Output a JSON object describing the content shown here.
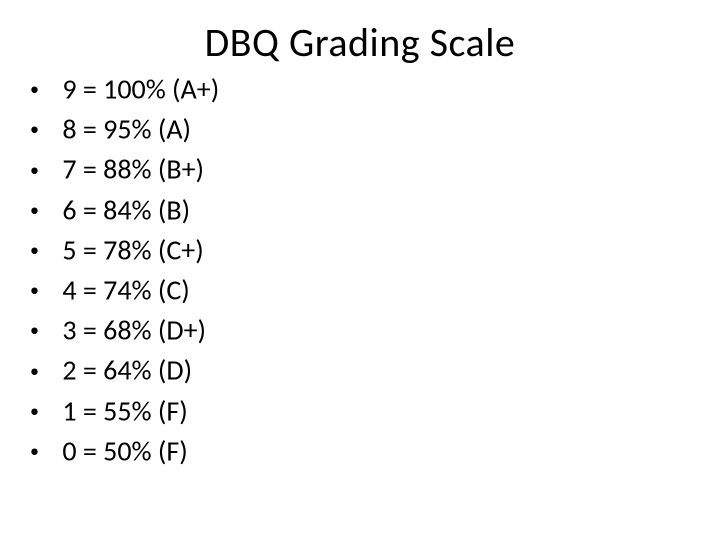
{
  "title": "DBQ Grading Scale",
  "title_fontsize": 40,
  "title_color": "#000000",
  "body_fontsize": 28,
  "body_color": "#000000",
  "background_color": "#ffffff",
  "bullet_glyph": "•",
  "items": [
    {
      "score": "9",
      "percent": "100%",
      "letter": "A+",
      "text": "9 = 100% (A+)"
    },
    {
      "score": "8",
      "percent": "95%",
      "letter": "A",
      "text": "8 = 95% (A)"
    },
    {
      "score": "7",
      "percent": "88%",
      "letter": "B+",
      "text": "7 = 88% (B+)"
    },
    {
      "score": "6",
      "percent": "84%",
      "letter": "B",
      "text": "6 = 84% (B)"
    },
    {
      "score": "5",
      "percent": "78%",
      "letter": "C+",
      "text": "5 = 78% (C+)"
    },
    {
      "score": "4",
      "percent": "74%",
      "letter": "C",
      "text": "4 = 74% (C)"
    },
    {
      "score": "3",
      "percent": "68%",
      "letter": "D+",
      "text": "3 = 68% (D+)"
    },
    {
      "score": "2",
      "percent": "64%",
      "letter": "D",
      "text": "2 = 64% (D)"
    },
    {
      "score": "1",
      "percent": "55%",
      "letter": "F",
      "text": "1 = 55% (F)"
    },
    {
      "score": "0",
      "percent": "50%",
      "letter": "F",
      "text": "0 = 50% (F)"
    }
  ]
}
